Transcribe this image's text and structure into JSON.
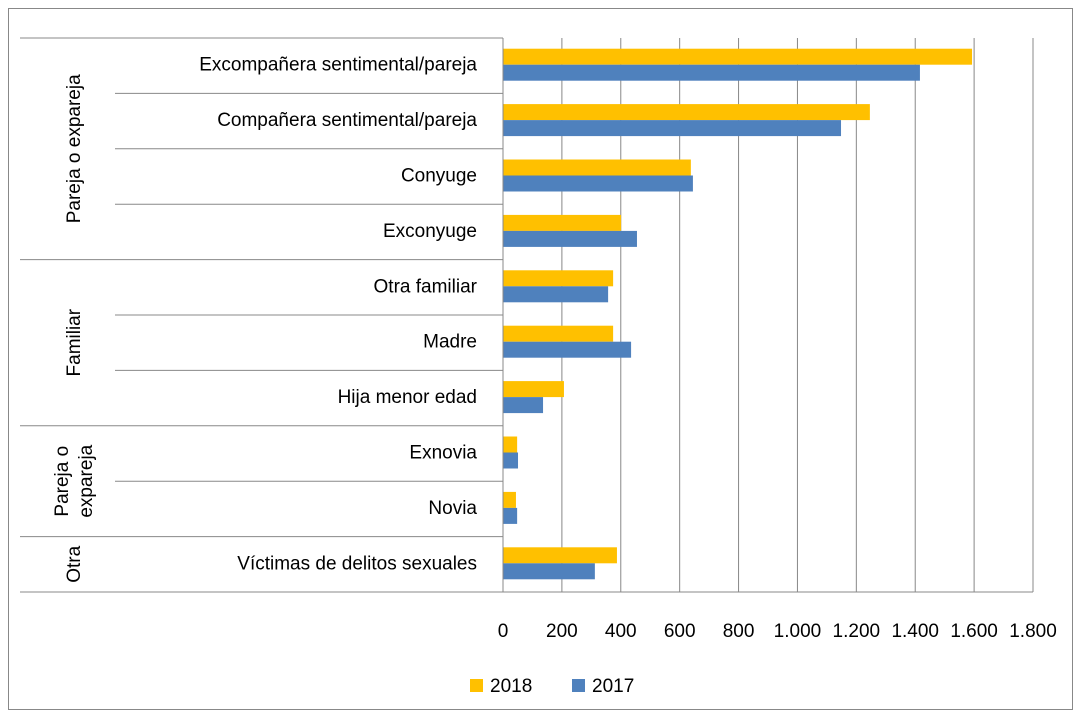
{
  "chart_data": {
    "type": "bar",
    "orientation": "horizontal",
    "groups": [
      {
        "label": [
          "Pareja o expareja"
        ],
        "categories": [
          "Excompañera sentimental/pareja",
          "Compañera sentimental/pareja",
          "Conyuge",
          "Exconyuge"
        ]
      },
      {
        "label": [
          "Familiar"
        ],
        "categories": [
          "Otra familiar",
          "Madre",
          "Hija menor edad"
        ]
      },
      {
        "label": [
          "Pareja o",
          "expareja"
        ],
        "categories": [
          "Exnovia",
          "Novia"
        ]
      },
      {
        "label": [
          "Otra"
        ],
        "categories": [
          "Víctimas de delitos sexuales"
        ]
      }
    ],
    "series": [
      {
        "name": "2018",
        "color": "#ffc000",
        "values": [
          1593,
          1246,
          638,
          401,
          374,
          374,
          207,
          48,
          44,
          387
        ]
      },
      {
        "name": "2017",
        "color": "#4f81bd",
        "values": [
          1416,
          1148,
          645,
          455,
          357,
          435,
          136,
          51,
          48,
          312
        ]
      }
    ],
    "xlim": [
      0,
      1800
    ],
    "xticks": [
      0,
      200,
      400,
      600,
      800,
      {
        "value": 1000,
        "label": "1.000"
      },
      {
        "value": 1200,
        "label": "1.200"
      },
      {
        "value": 1400,
        "label": "1.400"
      },
      {
        "value": 1600,
        "label": "1.600"
      },
      {
        "value": 1800,
        "label": "1.800"
      }
    ],
    "grid": true,
    "legend": "bottom"
  }
}
